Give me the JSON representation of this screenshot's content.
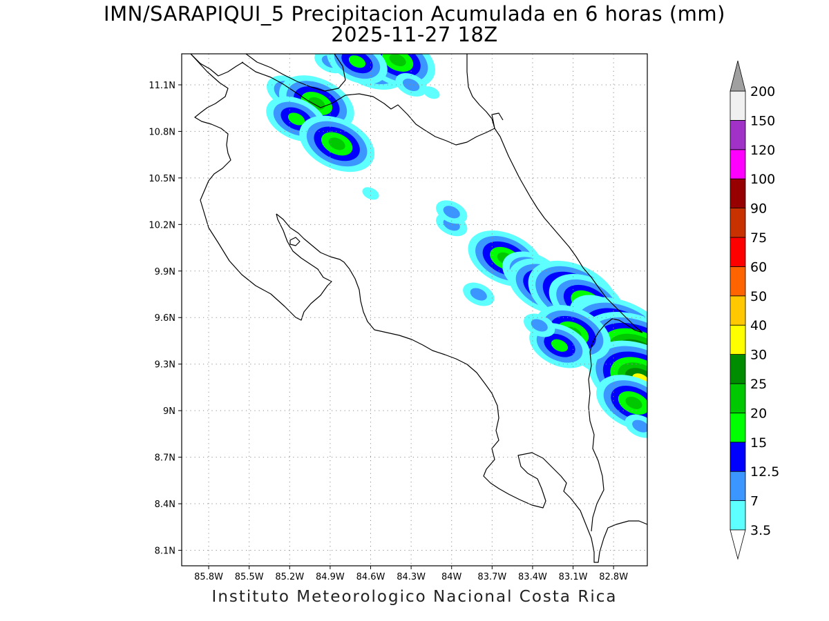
{
  "title": {
    "line1": "IMN/SARAPIQUI_5 Precipitacion Acumulada en 6 horas (mm)",
    "line2": "2025-11-27 18Z"
  },
  "footer": "Instituto Meteorologico Nacional Costa Rica",
  "map": {
    "lon_range": [
      -86.0,
      -82.55
    ],
    "lat_range": [
      8.0,
      11.3
    ],
    "lon_ticks": [
      {
        "v": -85.8,
        "label": "85.8W"
      },
      {
        "v": -85.5,
        "label": "85.5W"
      },
      {
        "v": -85.2,
        "label": "85.2W"
      },
      {
        "v": -84.9,
        "label": "84.9W"
      },
      {
        "v": -84.6,
        "label": "84.6W"
      },
      {
        "v": -84.3,
        "label": "84.3W"
      },
      {
        "v": -84.0,
        "label": "84W"
      },
      {
        "v": -83.7,
        "label": "83.7W"
      },
      {
        "v": -83.4,
        "label": "83.4W"
      },
      {
        "v": -83.1,
        "label": "83.1W"
      },
      {
        "v": -82.8,
        "label": "82.8W"
      }
    ],
    "lat_ticks": [
      {
        "v": 11.1,
        "label": "11.1N"
      },
      {
        "v": 10.8,
        "label": "10.8N"
      },
      {
        "v": 10.5,
        "label": "10.5N"
      },
      {
        "v": 10.2,
        "label": "10.2N"
      },
      {
        "v": 9.9,
        "label": "9.9N"
      },
      {
        "v": 9.6,
        "label": "9.6N"
      },
      {
        "v": 9.3,
        "label": "9.3N"
      },
      {
        "v": 9.0,
        "label": "9N"
      },
      {
        "v": 8.7,
        "label": "8.7N"
      },
      {
        "v": 8.4,
        "label": "8.4N"
      },
      {
        "v": 8.1,
        "label": "8.1N"
      }
    ],
    "grid": true,
    "units": "mm"
  },
  "colorbar": {
    "levels": [
      {
        "label": "3.5",
        "color": "#5effff"
      },
      {
        "label": "7",
        "color": "#3c96ff"
      },
      {
        "label": "12.5",
        "color": "#0000ff"
      },
      {
        "label": "15",
        "color": "#00ff00"
      },
      {
        "label": "20",
        "color": "#00c800"
      },
      {
        "label": "25",
        "color": "#008c00"
      },
      {
        "label": "30",
        "color": "#ffff00"
      },
      {
        "label": "40",
        "color": "#ffc800"
      },
      {
        "label": "50",
        "color": "#ff6400"
      },
      {
        "label": "60",
        "color": "#ff0000"
      },
      {
        "label": "75",
        "color": "#c83200"
      },
      {
        "label": "90",
        "color": "#960000"
      },
      {
        "label": "100",
        "color": "#ff00ff"
      },
      {
        "label": "120",
        "color": "#a032c8"
      },
      {
        "label": "150",
        "color": "#f0f0f0"
      },
      {
        "label": "200",
        "color": "#a0a0a0"
      }
    ],
    "under_color": "#ffffff",
    "over_color": "#a0a0a0"
  },
  "precip_cells": [
    {
      "lon": -84.9,
      "lat": 11.25,
      "mm": 7
    },
    {
      "lon": -84.6,
      "lat": 11.25,
      "mm": 20
    },
    {
      "lon": -84.4,
      "lat": 11.26,
      "mm": 20
    },
    {
      "lon": -84.7,
      "lat": 11.25,
      "mm": 15
    },
    {
      "lon": -85.2,
      "lat": 11.05,
      "mm": 12.5
    },
    {
      "lon": -85.0,
      "lat": 10.98,
      "mm": 20
    },
    {
      "lon": -85.15,
      "lat": 10.88,
      "mm": 15
    },
    {
      "lon": -84.85,
      "lat": 10.72,
      "mm": 20
    },
    {
      "lon": -84.3,
      "lat": 11.1,
      "mm": 7
    },
    {
      "lon": -84.15,
      "lat": 11.05,
      "mm": 3.5
    },
    {
      "lon": -84.0,
      "lat": 10.2,
      "mm": 7
    },
    {
      "lon": -84.0,
      "lat": 10.28,
      "mm": 7
    },
    {
      "lon": -84.6,
      "lat": 10.4,
      "mm": 3.5
    },
    {
      "lon": -83.65,
      "lat": 9.95,
      "mm": 7
    },
    {
      "lon": -83.6,
      "lat": 9.98,
      "mm": 20
    },
    {
      "lon": -83.4,
      "lat": 9.88,
      "mm": 15
    },
    {
      "lon": -83.3,
      "lat": 9.8,
      "mm": 20
    },
    {
      "lon": -83.1,
      "lat": 9.75,
      "mm": 25
    },
    {
      "lon": -83.0,
      "lat": 9.7,
      "mm": 20
    },
    {
      "lon": -82.9,
      "lat": 9.6,
      "mm": 15
    },
    {
      "lon": -82.85,
      "lat": 9.42,
      "mm": 25
    },
    {
      "lon": -82.75,
      "lat": 9.48,
      "mm": 30
    },
    {
      "lon": -82.62,
      "lat": 9.35,
      "mm": 40
    },
    {
      "lon": -82.6,
      "lat": 9.2,
      "mm": 30
    },
    {
      "lon": -82.65,
      "lat": 9.05,
      "mm": 20
    },
    {
      "lon": -82.6,
      "lat": 8.9,
      "mm": 7
    },
    {
      "lon": -83.1,
      "lat": 9.5,
      "mm": 20
    },
    {
      "lon": -83.2,
      "lat": 9.42,
      "mm": 15
    },
    {
      "lon": -83.35,
      "lat": 9.55,
      "mm": 7
    },
    {
      "lon": -83.8,
      "lat": 9.75,
      "mm": 7
    }
  ]
}
